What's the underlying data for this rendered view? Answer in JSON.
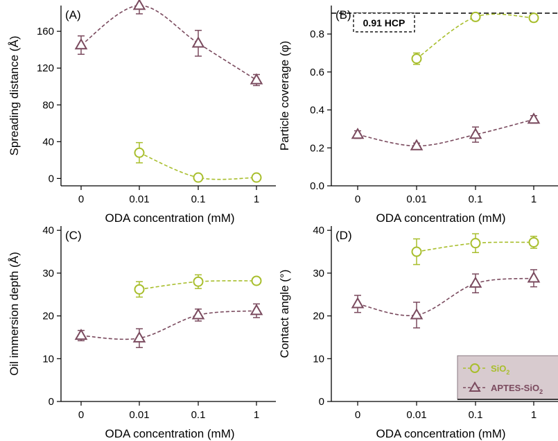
{
  "colors": {
    "sio2": "#a8be2c",
    "aptes": "#7a4a5e",
    "axis": "#000000",
    "legend_bg": "#d8cbcf"
  },
  "legend": {
    "entries": [
      {
        "marker": "circle",
        "prefix": "SiO",
        "sub": "2",
        "suffix": ""
      },
      {
        "marker": "triangle",
        "prefix": "APTES-SiO",
        "sub": "2",
        "suffix": ""
      }
    ]
  },
  "chart_data": [
    {
      "panel": "(A)",
      "type": "scatter",
      "xlabel": "ODA concentration (mM)",
      "ylabel": "Spreading distance (Å)",
      "categories": [
        "0",
        "0.01",
        "0.1",
        "1"
      ],
      "ylim": [
        -8,
        188
      ],
      "yticks": [
        0,
        40,
        80,
        120,
        160
      ],
      "series": [
        {
          "key": "sio2",
          "marker": "circle",
          "x": [
            1,
            2,
            3
          ],
          "y": [
            28,
            1,
            1
          ],
          "err": [
            11,
            2,
            2
          ]
        },
        {
          "key": "aptes",
          "marker": "triangle",
          "x": [
            0,
            1,
            2,
            3
          ],
          "y": [
            145,
            188,
            147,
            107
          ],
          "err": [
            10,
            9,
            14,
            6
          ]
        }
      ]
    },
    {
      "panel": "(B)",
      "type": "scatter",
      "xlabel": "ODA concentration (mM)",
      "ylabel": "Particle coverage (φ)",
      "categories": [
        "0",
        "0.01",
        "0.1",
        "1"
      ],
      "ylim": [
        0,
        0.95
      ],
      "yticks": [
        "0.0",
        "0.2",
        "0.4",
        "0.6",
        "0.8"
      ],
      "reference_line": {
        "y": 0.91,
        "label": "0.91 HCP"
      },
      "series": [
        {
          "key": "sio2",
          "marker": "circle",
          "x": [
            1,
            2,
            3
          ],
          "y": [
            0.67,
            0.89,
            0.885
          ],
          "err": [
            0.03,
            0.015,
            0.02
          ]
        },
        {
          "key": "aptes",
          "marker": "triangle",
          "x": [
            0,
            1,
            2,
            3
          ],
          "y": [
            0.27,
            0.21,
            0.27,
            0.35
          ],
          "err": [
            0.02,
            0.015,
            0.04,
            0.02
          ]
        }
      ]
    },
    {
      "panel": "(C)",
      "type": "scatter",
      "xlabel": "ODA concentration (mM)",
      "ylabel": "Oil immersion depth (Å)",
      "categories": [
        "0",
        "0.01",
        "0.1",
        "1"
      ],
      "ylim": [
        0,
        41
      ],
      "yticks": [
        0,
        10,
        20,
        30,
        40
      ],
      "series": [
        {
          "key": "sio2",
          "marker": "circle",
          "x": [
            1,
            2,
            3
          ],
          "y": [
            26.2,
            28,
            28.2
          ],
          "err": [
            1.8,
            1.6,
            0.8
          ]
        },
        {
          "key": "aptes",
          "marker": "triangle",
          "x": [
            0,
            1,
            2,
            3
          ],
          "y": [
            15.4,
            14.8,
            20.2,
            21.2
          ],
          "err": [
            1.2,
            2.2,
            1.4,
            1.6
          ]
        }
      ]
    },
    {
      "panel": "(D)",
      "type": "scatter",
      "xlabel": "ODA concentration (mM)",
      "ylabel": "Contact angle (°)",
      "categories": [
        "0",
        "0.01",
        "0.1",
        "1"
      ],
      "ylim": [
        0,
        41
      ],
      "yticks": [
        0,
        10,
        20,
        30,
        40
      ],
      "series": [
        {
          "key": "sio2",
          "marker": "circle",
          "x": [
            1,
            2,
            3
          ],
          "y": [
            35,
            37,
            37.2
          ],
          "err": [
            3,
            2.2,
            1.4
          ]
        },
        {
          "key": "aptes",
          "marker": "triangle",
          "x": [
            0,
            1,
            2,
            3
          ],
          "y": [
            22.8,
            20.2,
            27.6,
            28.8
          ],
          "err": [
            2,
            3,
            2.2,
            2
          ]
        }
      ]
    }
  ]
}
